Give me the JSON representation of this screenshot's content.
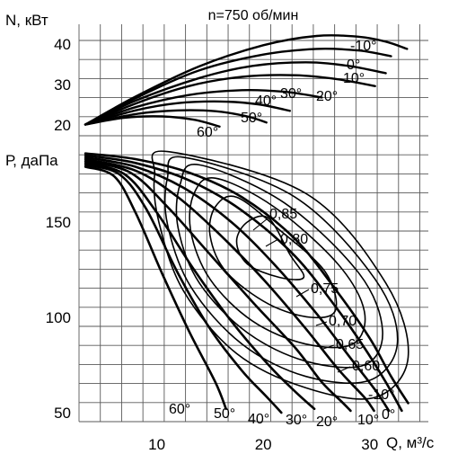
{
  "chart_data": {
    "type": "line",
    "title": "n=750 об/мин",
    "xlabel": "Q, м³/с",
    "x_ticks": [
      "10",
      "20",
      "30"
    ],
    "xlim": [
      2.7,
      35.5
    ],
    "grid": true,
    "power_chart": {
      "ylabel": "N, кВт",
      "ylim": [
        18,
        44
      ],
      "y_ticks": [
        "20",
        "30",
        "40"
      ],
      "series": [
        {
          "name": "-10°",
          "label": "-10°",
          "x": [
            3.3,
            8,
            14,
            20,
            25,
            29,
            31.5,
            33.5
          ],
          "y": [
            20.1,
            27,
            34.5,
            39.7,
            42,
            41.8,
            40.6,
            38.8
          ]
        },
        {
          "name": "0°",
          "label": "0°",
          "x": [
            3.3,
            8,
            14,
            20,
            25,
            29,
            32
          ],
          "y": [
            20.1,
            26.6,
            33.5,
            37.4,
            38.8,
            38.4,
            37
          ]
        },
        {
          "name": "10°",
          "label": "10°",
          "x": [
            3.3,
            8,
            14,
            19,
            24,
            28,
            31.5
          ],
          "y": [
            20.1,
            26,
            31.6,
            34.6,
            35.5,
            34.6,
            32.8
          ]
        },
        {
          "name": "20°",
          "label": "20°",
          "x": [
            3.3,
            8,
            13,
            18,
            23,
            27,
            30.5
          ],
          "y": [
            20.1,
            25.3,
            29.6,
            31.9,
            32.3,
            31.3,
            29.6
          ]
        },
        {
          "name": "30°",
          "label": "30°",
          "x": [
            3.3,
            8,
            13,
            18,
            22,
            25.5
          ],
          "y": [
            20.1,
            24.4,
            27.4,
            28.6,
            28.2,
            26.8
          ]
        },
        {
          "name": "40°",
          "label": "40°",
          "x": [
            3.3,
            8,
            12,
            16,
            19.5,
            22.5
          ],
          "y": [
            20.1,
            23.6,
            25.4,
            25.8,
            25.1,
            23.5
          ]
        },
        {
          "name": "50°",
          "label": "50°",
          "x": [
            3.3,
            8,
            12,
            15.5,
            18.5,
            20.3
          ],
          "y": [
            20.1,
            22.7,
            23.6,
            23.4,
            22.1,
            20.6
          ]
        },
        {
          "name": "60°",
          "label": "60°",
          "x": [
            3.3,
            7,
            10.5,
            13.5,
            15.9
          ],
          "y": [
            20.1,
            21.8,
            22.1,
            21.3,
            19.6
          ]
        }
      ]
    },
    "pressure_chart": {
      "ylabel": "Р, даПа",
      "ylim": [
        47,
        193
      ],
      "y_ticks": [
        "50",
        "100",
        "150"
      ],
      "series": [
        {
          "name": "-10°",
          "label": "-10°",
          "x": [
            3.3,
            8,
            13,
            18,
            23,
            27,
            30,
            32,
            33.6
          ],
          "y": [
            186,
            183,
            176,
            163,
            141,
            113,
            89,
            69,
            55
          ]
        },
        {
          "name": "0°",
          "label": "0°",
          "x": [
            3.3,
            8,
            13,
            18,
            23,
            27,
            29.5,
            31.5,
            33
          ],
          "y": [
            185,
            181,
            172,
            156,
            132,
            104,
            84,
            66,
            51
          ]
        },
        {
          "name": "10°",
          "label": "10°",
          "x": [
            3.3,
            8,
            12.5,
            17,
            21,
            25,
            28,
            30.5,
            31.8
          ],
          "y": [
            184,
            179,
            168,
            150,
            128,
            102,
            80,
            62,
            51
          ]
        },
        {
          "name": "20°",
          "label": "20°",
          "x": [
            3.3,
            8,
            12,
            16,
            20,
            24,
            27,
            29.5,
            30.4
          ],
          "y": [
            183,
            177,
            163,
            143,
            120,
            94,
            73,
            58,
            51
          ]
        },
        {
          "name": "30°",
          "label": "30°",
          "x": [
            3.3,
            7.5,
            11,
            15,
            19,
            23,
            25.5,
            27.5,
            28.2
          ],
          "y": [
            182,
            176,
            158,
            133,
            108,
            84,
            66,
            55,
            51
          ]
        },
        {
          "name": "40°",
          "label": "40°",
          "x": [
            3.3,
            7,
            10,
            13.5,
            17,
            20.5,
            23,
            24.8
          ],
          "y": [
            181,
            175,
            155,
            125,
            98,
            75,
            61,
            52
          ]
        },
        {
          "name": "50°",
          "label": "50°",
          "x": [
            3.3,
            6.5,
            9,
            12,
            15,
            18,
            20.2,
            21.7
          ],
          "y": [
            180,
            175,
            157,
            123,
            94,
            72,
            59,
            50
          ]
        },
        {
          "name": "60°",
          "label": "60°",
          "x": [
            3.3,
            6,
            8,
            10.5,
            13,
            15.5,
            16.5
          ],
          "y": [
            179,
            174,
            155,
            123,
            93,
            66,
            52
          ]
        }
      ],
      "efficiency_contours": [
        {
          "label": "0,85",
          "x": [
            20.5,
            18.5,
            17.5,
            18.5,
            21.5,
            23.8,
            22.5,
            20.5
          ],
          "y": [
            152,
            150,
            140,
            128,
            121,
            121,
            133,
            152
          ]
        },
        {
          "label": "0,80",
          "x": [
            17.5,
            15.5,
            15,
            16.5,
            20.5,
            24.5,
            26.8,
            25.8,
            21.5,
            17.5
          ],
          "y": [
            163,
            158,
            143,
            124,
            107,
            100,
            104,
            124,
            146,
            163
          ]
        },
        {
          "label": "0,75",
          "x": [
            15.5,
            13.5,
            13.2,
            15,
            19,
            24,
            28.4,
            29.5,
            27,
            21,
            15.5
          ],
          "y": [
            173,
            165,
            145,
            120,
            98,
            86,
            86,
            103,
            128,
            158,
            173
          ]
        },
        {
          "label": "0,70",
          "x": [
            14,
            12.2,
            12,
            14,
            18.5,
            24,
            29.5,
            31.2,
            29,
            22,
            14
          ],
          "y": [
            180,
            170,
            147,
            118,
            92,
            77,
            75,
            93,
            123,
            160,
            180
          ]
        },
        {
          "label": "0,65",
          "x": [
            12.5,
            11,
            11,
            13.2,
            18,
            24,
            30,
            32.6,
            30.5,
            23,
            12.5
          ],
          "y": [
            184,
            173,
            149,
            116,
            86,
            69,
            67,
            87,
            120,
            163,
            184
          ]
        },
        {
          "label": "0,60",
          "x": [
            11,
            9.8,
            10.2,
            12.5,
            17.5,
            24,
            30.5,
            33.6,
            31.5,
            24,
            11
          ],
          "y": [
            187,
            175,
            150,
            114,
            81,
            63,
            58,
            79,
            118,
            165,
            187
          ]
        }
      ]
    }
  }
}
